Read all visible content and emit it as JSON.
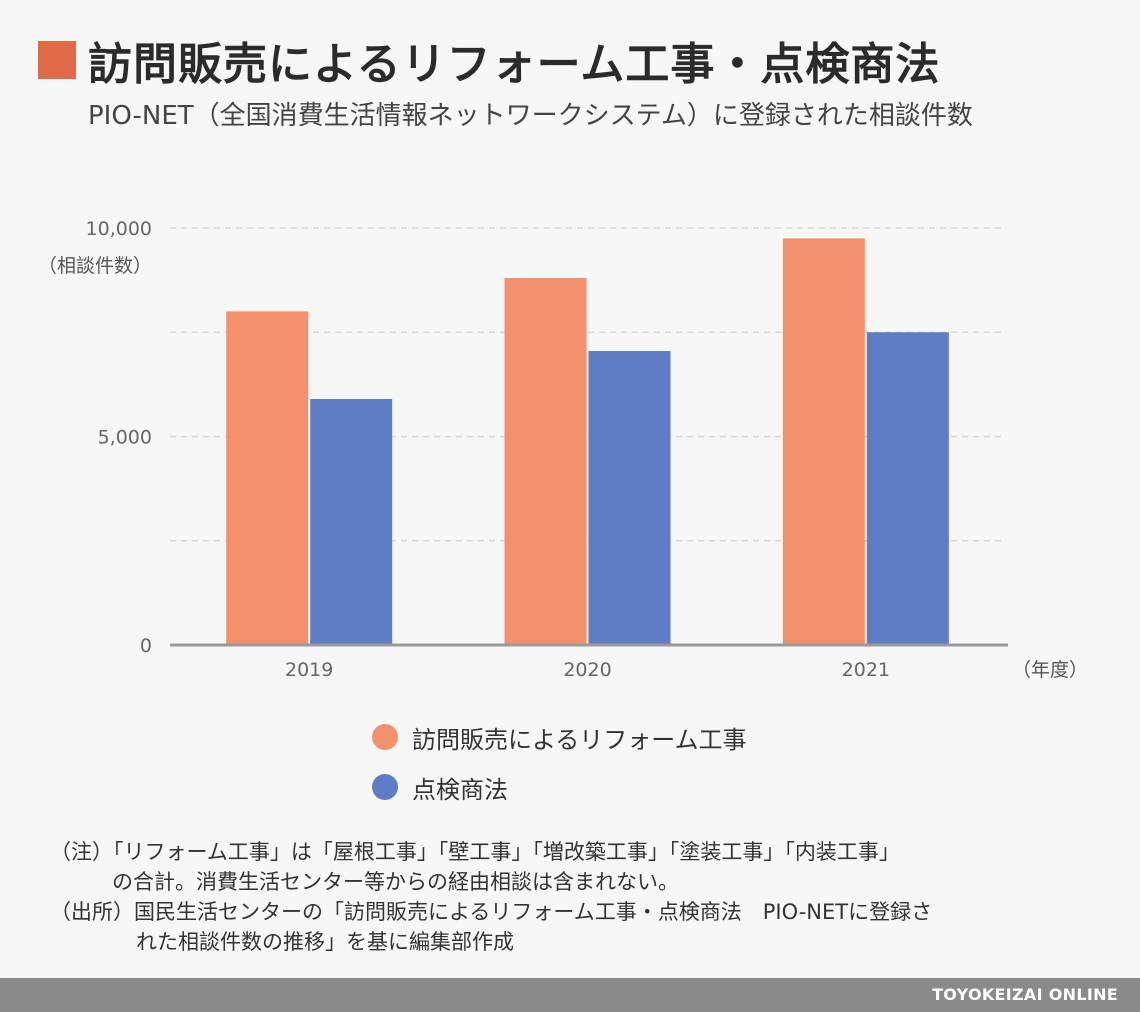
{
  "title": "訪問販売によるリフォーム工事・点検商法",
  "subtitle": "PIO-NET（全国消費生活情報ネットワークシステム）に登録された相談件数",
  "colors": {
    "accent": "#e06a48",
    "remodel": "#f4916d",
    "inspection": "#5f7dc5"
  },
  "chart_data": {
    "type": "bar",
    "categories": [
      "2019",
      "2020",
      "2021"
    ],
    "series": [
      {
        "name": "訪問販売によるリフォーム工事",
        "values": [
          8000,
          8800,
          9750
        ]
      },
      {
        "name": "点検商法",
        "values": [
          5900,
          7050,
          7500
        ]
      }
    ],
    "ylim": [
      0,
      10000
    ],
    "yticks": [
      0,
      5000,
      10000
    ],
    "ytick_labels": [
      "0",
      "5,000",
      "10,000"
    ],
    "ylabel": "（相談件数）",
    "xlabel": "（年度）",
    "grid": true
  },
  "legend": [
    {
      "label": "訪問販売によるリフォーム工事"
    },
    {
      "label": "点検商法"
    }
  ],
  "notes": {
    "line1": "（注）「リフォーム工事」は「屋根工事」「壁工事」「増改築工事」「塗装工事」「内装工事」",
    "line2": "の合計。消費生活センター等からの経由相談は含まれない。",
    "line3": "（出所）国民生活センターの「訪問販売によるリフォーム工事・点検商法　PIO-NETに登録さ",
    "line4": "れた相談件数の推移」を基に編集部作成"
  },
  "footer": {
    "brand": "TOYOKEIZAI ONLINE"
  }
}
